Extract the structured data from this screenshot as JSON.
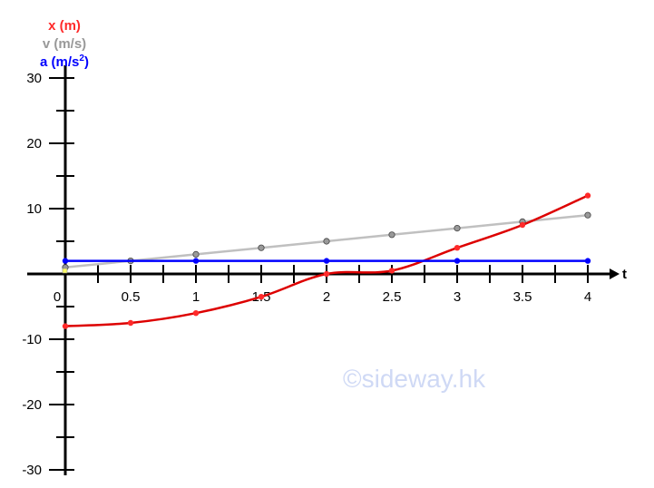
{
  "chart_data": {
    "type": "line",
    "x": [
      0,
      0.5,
      1,
      1.5,
      2,
      2.5,
      3,
      3.5,
      4
    ],
    "series": [
      {
        "name": "x (m)",
        "color": "#ff2a2a",
        "line_color": "#dd0000",
        "values": [
          -8,
          -7.5,
          -6,
          -3.5,
          0,
          0.5,
          4,
          7.5,
          12
        ]
      },
      {
        "name": "v (m/s)",
        "color": "#999999",
        "line_color": "#c0c0c0",
        "values": [
          1,
          2,
          3,
          4,
          5,
          6,
          7,
          8,
          9
        ]
      },
      {
        "name": "a (m/s2)",
        "color": "#0000ff",
        "line_color": "#0000ff",
        "values": [
          2,
          2,
          2,
          2,
          2,
          2,
          2,
          2,
          2
        ]
      }
    ],
    "x_axis_label": "t",
    "x_ticks": [
      "0",
      "0.5",
      "1",
      "1.5",
      "2",
      "2.5",
      "3",
      "3.5",
      "4"
    ],
    "y_ticks": [
      {
        "value": 30,
        "label": "30"
      },
      {
        "value": 20,
        "label": "20"
      },
      {
        "value": 10,
        "label": "10"
      },
      {
        "value": -10,
        "label": "-10"
      },
      {
        "value": -20,
        "label": "-20"
      },
      {
        "value": -30,
        "label": "-30"
      }
    ],
    "xlim": [
      0,
      4
    ],
    "ylim": [
      -30,
      30
    ],
    "legend": {
      "placement": "top-left",
      "items": [
        {
          "text": "x (m)",
          "color": "#ff2a2a"
        },
        {
          "text": "v (m/s)",
          "color": "#999999"
        },
        {
          "text": "a (m/s",
          "sup": "2",
          "close": ")",
          "color": "#0000ff"
        }
      ]
    },
    "grid": false
  },
  "watermark": "©sideway.hk"
}
